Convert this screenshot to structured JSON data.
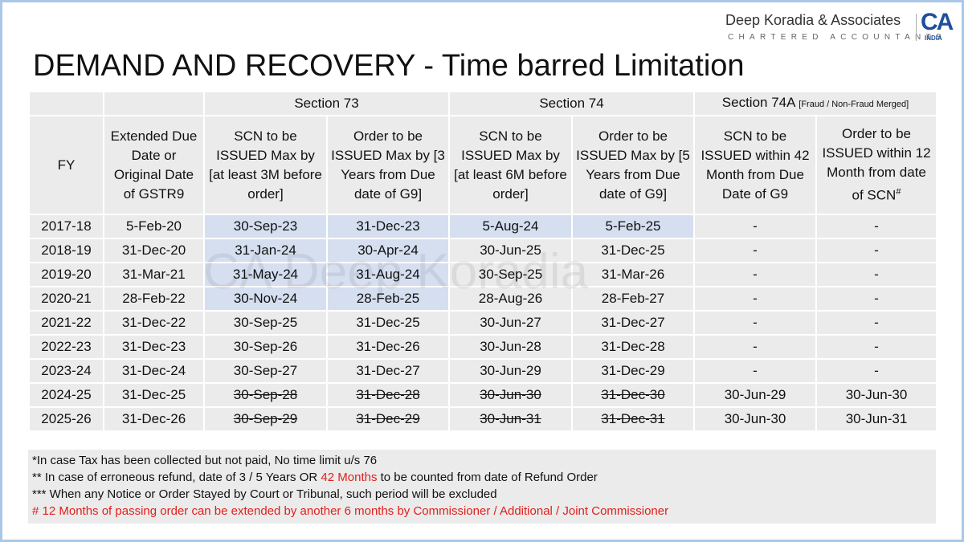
{
  "logo": {
    "firm": "Deep Koradia & Associates",
    "subtitle": "CHARTERED ACCOUNTANTS",
    "mark": "CA",
    "country": "INDIA"
  },
  "title": "DEMAND AND RECOVERY - Time barred Limitation",
  "watermark": "CA Deep Koradia",
  "table": {
    "groups": [
      {
        "label": "Section 73"
      },
      {
        "label": "Section 74"
      },
      {
        "label": "Section 74A",
        "note": "[Fraud / Non-Fraud Merged]"
      }
    ],
    "columns": [
      {
        "label": "FY"
      },
      {
        "label": "Extended Due Date or Original Date of GSTR9"
      },
      {
        "label": "SCN to be ISSUED Max by [at least 3M before order]"
      },
      {
        "label": "Order to be ISSUED Max by [3 Years from Due date of G9]"
      },
      {
        "label": "SCN to be ISSUED Max by [at least 6M before order]"
      },
      {
        "label": "Order to be ISSUED Max by [5 Years from Due date of G9]"
      },
      {
        "label": "SCN to be ISSUED within 42 Month from Due Date of G9"
      },
      {
        "label": "Order to be ISSUED within 12 Month from  date of SCN",
        "sup": "#"
      }
    ],
    "highlight_color": "#d5dff0",
    "rows": [
      {
        "cells": [
          "2017-18",
          "5-Feb-20",
          "30-Sep-23",
          "31-Dec-23",
          "5-Aug-24",
          "5-Feb-25",
          "-",
          "-"
        ],
        "highlight": [
          2,
          3,
          4,
          5
        ]
      },
      {
        "cells": [
          "2018-19",
          "31-Dec-20",
          "31-Jan-24",
          "30-Apr-24",
          "30-Jun-25",
          "31-Dec-25",
          "-",
          "-"
        ],
        "highlight": [
          2,
          3
        ]
      },
      {
        "cells": [
          "2019-20",
          "31-Mar-21",
          "31-May-24",
          "31-Aug-24",
          "30-Sep-25",
          "31-Mar-26",
          "-",
          "-"
        ],
        "highlight": [
          2,
          3
        ]
      },
      {
        "cells": [
          "2020-21",
          "28-Feb-22",
          "30-Nov-24",
          "28-Feb-25",
          "28-Aug-26",
          "28-Feb-27",
          "-",
          "-"
        ],
        "highlight": [
          2,
          3
        ]
      },
      {
        "cells": [
          "2021-22",
          "31-Dec-22",
          "30-Sep-25",
          "31-Dec-25",
          "30-Jun-27",
          "31-Dec-27",
          "-",
          "-"
        ]
      },
      {
        "cells": [
          "2022-23",
          "31-Dec-23",
          "30-Sep-26",
          "31-Dec-26",
          "30-Jun-28",
          "31-Dec-28",
          "-",
          "-"
        ]
      },
      {
        "cells": [
          "2023-24",
          "31-Dec-24",
          "30-Sep-27",
          "31-Dec-27",
          "30-Jun-29",
          "31-Dec-29",
          "-",
          "-"
        ]
      },
      {
        "cells": [
          "2024-25",
          "31-Dec-25",
          "30-Sep-28",
          "31-Dec-28",
          "30-Jun-30",
          "31-Dec-30",
          "30-Jun-29",
          "30-Jun-30"
        ],
        "struck": [
          2,
          3,
          4,
          5
        ]
      },
      {
        "cells": [
          "2025-26",
          "31-Dec-26",
          "30-Sep-29",
          "31-Dec-29",
          "30-Jun-31",
          "31-Dec-31",
          "30-Jun-30",
          "30-Jun-31"
        ],
        "struck": [
          2,
          3,
          4,
          5
        ]
      }
    ]
  },
  "notes": [
    {
      "parts": [
        {
          "text": "*In case Tax has been collected but not paid, No time limit u/s 76"
        }
      ]
    },
    {
      "parts": [
        {
          "text": "** In case of erroneous refund, date of 3 / 5 Years OR "
        },
        {
          "text": "42 Months",
          "color": "#e0201b"
        },
        {
          "text": " to be counted from date of Refund Order"
        }
      ]
    },
    {
      "parts": [
        {
          "text": "*** When any Notice or Order Stayed by Court or Tribunal, such period will be excluded"
        }
      ]
    },
    {
      "parts": [
        {
          "text": "# 12 Months of passing order can be extended by another 6 months by Commissioner / Additional / Joint Commissioner",
          "color": "#e0201b"
        }
      ]
    }
  ]
}
